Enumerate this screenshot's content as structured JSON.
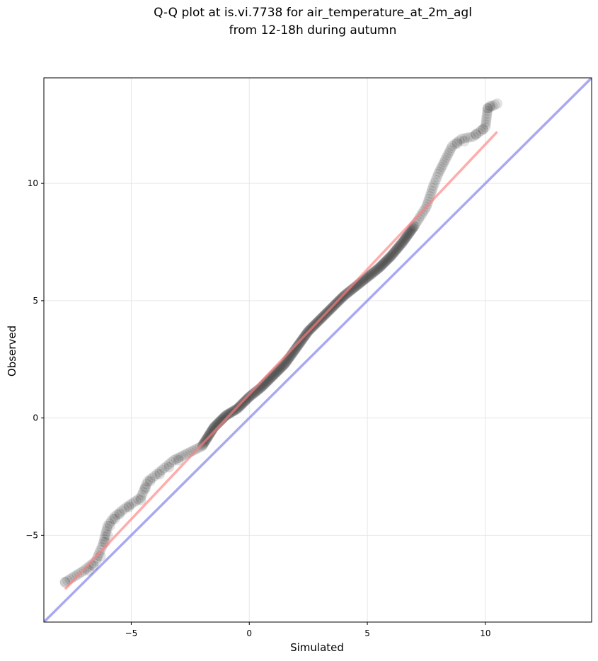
{
  "chart_data": {
    "type": "scatter",
    "title_line1": "Q-Q plot at is.vi.7738 for air_temperature_at_2m_agl",
    "title_line2": "from 12-18h during autumn",
    "xlabel": "Simulated",
    "ylabel": "Observed",
    "xlim": [
      -8.7,
      14.5
    ],
    "ylim": [
      -8.7,
      14.5
    ],
    "xticks": [
      -5,
      0,
      5,
      10
    ],
    "yticks": [
      -5,
      0,
      5,
      10
    ],
    "xtick_labels": [
      "−5",
      "0",
      "5",
      "10"
    ],
    "ytick_labels": [
      "−5",
      "0",
      "5",
      "10"
    ],
    "grid": true,
    "quantile_curve": [
      [
        -7.8,
        -7.0
      ],
      [
        -7.0,
        -6.5
      ],
      [
        -6.5,
        -6.1
      ],
      [
        -6.2,
        -5.4
      ],
      [
        -6.0,
        -4.6
      ],
      [
        -5.7,
        -4.2
      ],
      [
        -5.2,
        -3.8
      ],
      [
        -4.6,
        -3.4
      ],
      [
        -4.3,
        -2.7
      ],
      [
        -3.8,
        -2.3
      ],
      [
        -3.2,
        -1.8
      ],
      [
        -2.6,
        -1.5
      ],
      [
        -2.0,
        -1.2
      ],
      [
        -1.5,
        -0.4
      ],
      [
        -1.0,
        0.1
      ],
      [
        -0.5,
        0.4
      ],
      [
        0.0,
        0.9
      ],
      [
        0.5,
        1.3
      ],
      [
        1.0,
        1.8
      ],
      [
        1.5,
        2.3
      ],
      [
        2.0,
        3.0
      ],
      [
        2.5,
        3.7
      ],
      [
        3.0,
        4.2
      ],
      [
        3.5,
        4.7
      ],
      [
        4.0,
        5.2
      ],
      [
        4.5,
        5.6
      ],
      [
        5.0,
        6.0
      ],
      [
        5.5,
        6.4
      ],
      [
        6.0,
        6.9
      ],
      [
        6.5,
        7.5
      ],
      [
        7.0,
        8.2
      ],
      [
        7.5,
        9.0
      ],
      [
        7.8,
        9.9
      ],
      [
        8.0,
        10.4
      ],
      [
        8.3,
        11.0
      ],
      [
        8.6,
        11.6
      ],
      [
        9.0,
        11.9
      ],
      [
        9.5,
        12.0
      ],
      [
        10.0,
        12.4
      ],
      [
        10.1,
        13.2
      ],
      [
        10.5,
        13.4
      ]
    ],
    "sparse_points": [
      [
        -7.8,
        -7.0
      ],
      [
        -6.8,
        -6.5
      ],
      [
        -6.6,
        -6.3
      ],
      [
        -6.3,
        -5.9
      ],
      [
        -6.1,
        -5.3
      ],
      [
        -6.0,
        -5.0
      ],
      [
        -5.9,
        -4.6
      ],
      [
        -5.7,
        -4.3
      ],
      [
        -5.5,
        -4.1
      ],
      [
        -5.1,
        -3.8
      ],
      [
        -4.6,
        -3.5
      ],
      [
        -4.4,
        -3.0
      ],
      [
        -4.2,
        -2.7
      ],
      [
        -3.8,
        -2.4
      ],
      [
        -3.4,
        -2.1
      ],
      [
        -3.0,
        -1.8
      ],
      [
        8.8,
        11.7
      ],
      [
        9.1,
        11.8
      ],
      [
        9.6,
        12.1
      ],
      [
        9.9,
        12.3
      ],
      [
        10.1,
        13.2
      ],
      [
        10.2,
        13.3
      ],
      [
        10.5,
        13.4
      ]
    ],
    "fit_line": {
      "x": [
        -7.8,
        10.5
      ],
      "y": [
        -7.3,
        12.2
      ]
    },
    "identity_line": {
      "x": [
        -8.7,
        14.5
      ],
      "y": [
        -8.7,
        14.5
      ]
    },
    "colors": {
      "points": "#000000",
      "fit_line": "#ff7f7f",
      "identity_line": "#8c8cee",
      "grid": "#e6e6e6"
    }
  }
}
